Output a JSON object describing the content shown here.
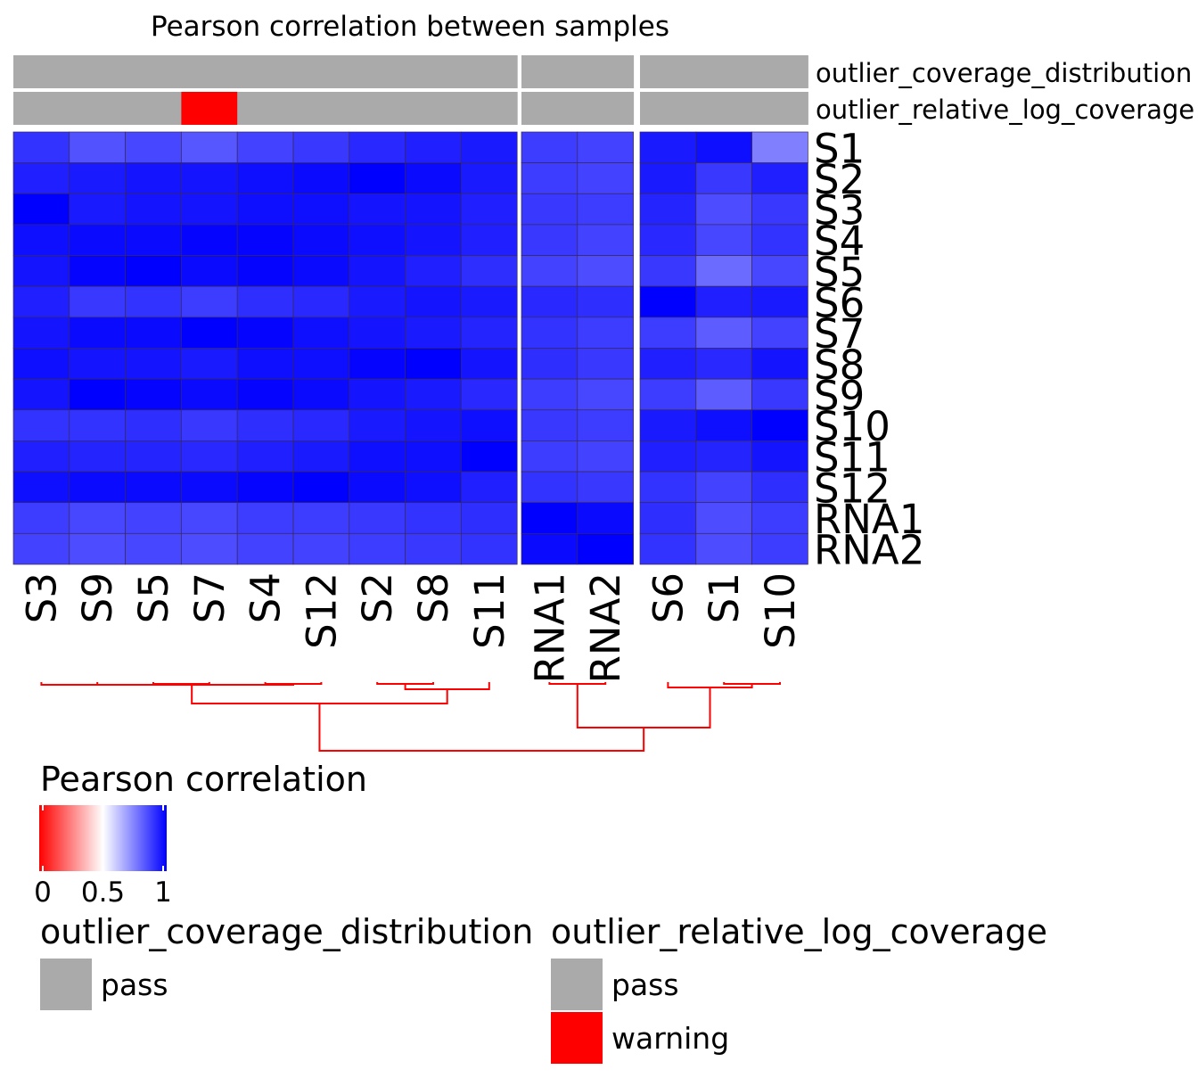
{
  "chart_data": {
    "type": "heatmap",
    "title": "Pearson correlation between samples",
    "rows": [
      "S1",
      "S2",
      "S3",
      "S4",
      "S5",
      "S6",
      "S7",
      "S8",
      "S9",
      "S10",
      "S11",
      "S12",
      "RNA1",
      "RNA2"
    ],
    "column_groups": [
      [
        "S3",
        "S9",
        "S5",
        "S7",
        "S4",
        "S12",
        "S2",
        "S8",
        "S11"
      ],
      [
        "RNA1",
        "RNA2"
      ],
      [
        "S6",
        "S1",
        "S10"
      ]
    ],
    "highlighted_columns": [
      "S7"
    ],
    "values": [
      [
        0.9,
        0.84,
        0.86,
        0.83,
        0.87,
        0.89,
        0.92,
        0.94,
        0.95,
        0.88,
        0.87,
        0.95,
        0.97,
        0.75
      ],
      [
        0.94,
        0.95,
        0.96,
        0.96,
        0.97,
        0.98,
        1.0,
        0.98,
        0.95,
        0.88,
        0.87,
        0.95,
        0.89,
        0.94
      ],
      [
        1.0,
        0.95,
        0.96,
        0.96,
        0.97,
        0.97,
        0.96,
        0.96,
        0.94,
        0.89,
        0.88,
        0.93,
        0.85,
        0.89
      ],
      [
        0.97,
        0.98,
        0.98,
        0.99,
        0.99,
        0.98,
        0.97,
        0.96,
        0.94,
        0.89,
        0.87,
        0.92,
        0.86,
        0.9
      ],
      [
        0.96,
        0.99,
        1.0,
        0.98,
        0.99,
        0.98,
        0.96,
        0.94,
        0.91,
        0.87,
        0.85,
        0.89,
        0.79,
        0.86
      ],
      [
        0.94,
        0.89,
        0.9,
        0.88,
        0.91,
        0.92,
        0.95,
        0.96,
        0.95,
        0.92,
        0.91,
        1.0,
        0.94,
        0.95
      ],
      [
        0.96,
        0.98,
        0.98,
        1.0,
        0.99,
        0.97,
        0.96,
        0.95,
        0.93,
        0.9,
        0.88,
        0.88,
        0.82,
        0.87
      ],
      [
        0.97,
        0.96,
        0.96,
        0.95,
        0.97,
        0.97,
        0.99,
        1.0,
        0.96,
        0.91,
        0.89,
        0.94,
        0.92,
        0.96
      ],
      [
        0.96,
        1.0,
        0.99,
        0.98,
        0.99,
        0.98,
        0.96,
        0.95,
        0.92,
        0.88,
        0.86,
        0.88,
        0.82,
        0.89
      ],
      [
        0.9,
        0.9,
        0.91,
        0.89,
        0.91,
        0.92,
        0.95,
        0.96,
        0.97,
        0.89,
        0.88,
        0.95,
        0.97,
        1.0
      ],
      [
        0.94,
        0.93,
        0.93,
        0.92,
        0.94,
        0.95,
        0.97,
        0.97,
        1.0,
        0.88,
        0.87,
        0.94,
        0.93,
        0.96
      ],
      [
        0.97,
        0.98,
        0.98,
        0.98,
        0.99,
        1.0,
        0.98,
        0.97,
        0.94,
        0.9,
        0.89,
        0.9,
        0.87,
        0.91
      ],
      [
        0.88,
        0.86,
        0.87,
        0.86,
        0.88,
        0.88,
        0.89,
        0.9,
        0.91,
        1.0,
        0.98,
        0.91,
        0.85,
        0.88
      ],
      [
        0.87,
        0.85,
        0.86,
        0.85,
        0.87,
        0.87,
        0.88,
        0.89,
        0.9,
        0.98,
        1.0,
        0.9,
        0.85,
        0.88
      ]
    ],
    "column_annotations": [
      {
        "name": "outlier_coverage_distribution",
        "values": [
          "pass",
          "pass",
          "pass",
          "pass",
          "pass",
          "pass",
          "pass",
          "pass",
          "pass",
          "pass",
          "pass",
          "pass",
          "pass",
          "pass"
        ]
      },
      {
        "name": "outlier_relative_log_coverage",
        "values": [
          "pass",
          "pass",
          "pass",
          "warning",
          "pass",
          "pass",
          "pass",
          "pass",
          "pass",
          "pass",
          "pass",
          "pass",
          "pass",
          "pass"
        ]
      }
    ],
    "color_legend": {
      "title": "Pearson correlation",
      "ticks": [
        "0",
        "0.5",
        "1"
      ],
      "range": [
        0,
        1
      ],
      "colors": [
        "#ff0000",
        "#ffffff",
        "#0000ff"
      ]
    },
    "annotation_legends": [
      {
        "title": "outlier_coverage_distribution",
        "levels": [
          {
            "label": "pass",
            "color": "#aaaaaa"
          }
        ]
      },
      {
        "title": "outlier_relative_log_coverage",
        "levels": [
          {
            "label": "pass",
            "color": "#aaaaaa"
          },
          {
            "label": "warning",
            "color": "#ff0000"
          }
        ]
      }
    ],
    "dendrogram_color": "#ff0000",
    "highlight_color": "#ff0000"
  }
}
